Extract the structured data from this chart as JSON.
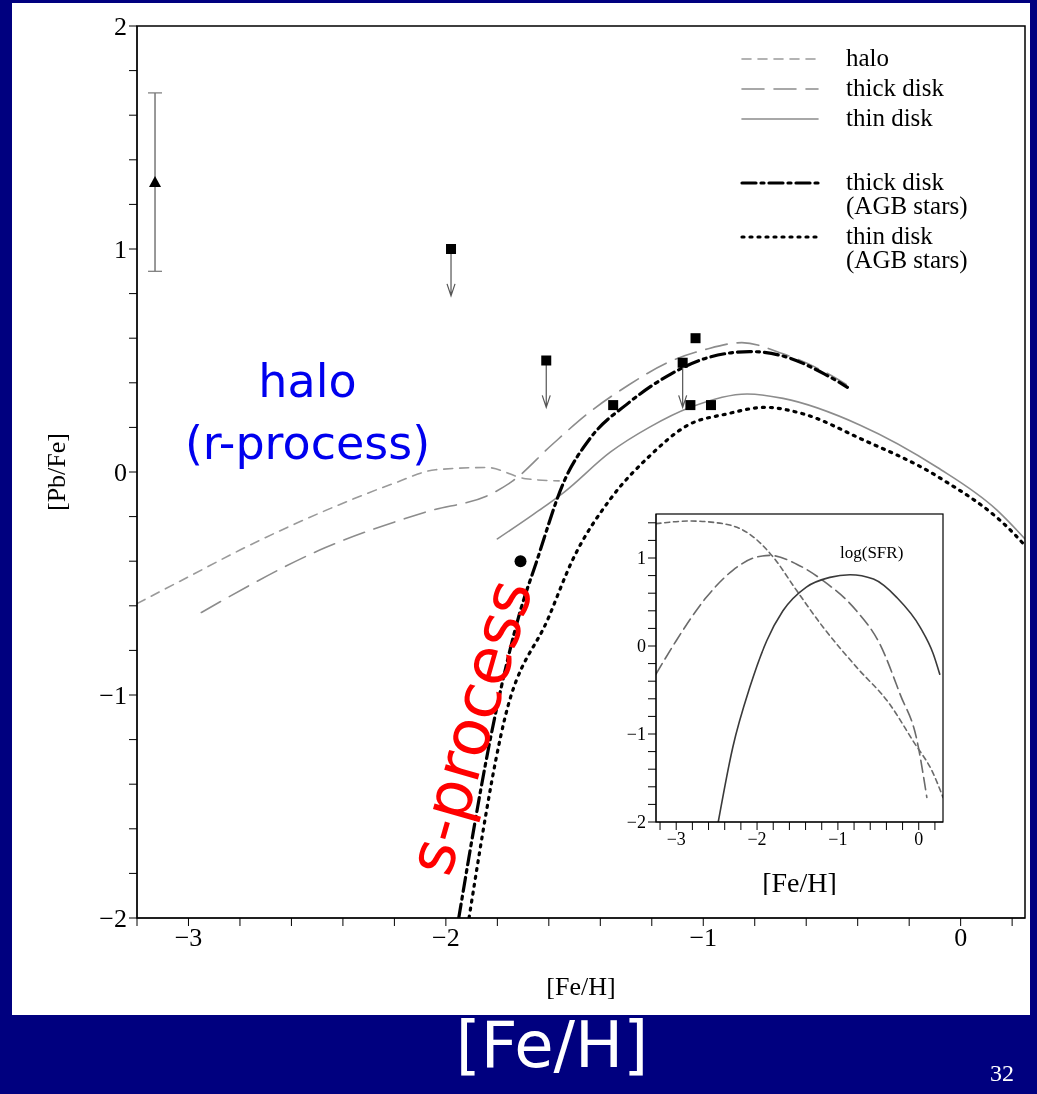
{
  "chart_data": [
    {
      "type": "line",
      "xlabel": "[Fe/H]",
      "ylabel": "[Pb/Fe]",
      "xlim": [
        -3.2,
        0.25
      ],
      "ylim": [
        -2,
        2
      ],
      "xticks": [
        {
          "value": -3.2,
          "label": null
        },
        {
          "value": -3,
          "label": "−3"
        },
        {
          "value": -2.8,
          "label": null
        },
        {
          "value": -2.6,
          "label": null
        },
        {
          "value": -2.4,
          "label": null
        },
        {
          "value": -2.2,
          "label": null
        },
        {
          "value": -2,
          "label": "−2"
        },
        {
          "value": -1.8,
          "label": null
        },
        {
          "value": -1.6,
          "label": null
        },
        {
          "value": -1.4,
          "label": null
        },
        {
          "value": -1.2,
          "label": null
        },
        {
          "value": -1,
          "label": "−1"
        },
        {
          "value": -0.8,
          "label": null
        },
        {
          "value": -0.6,
          "label": null
        },
        {
          "value": -0.4,
          "label": null
        },
        {
          "value": -0.2,
          "label": null
        },
        {
          "value": 0,
          "label": "0"
        },
        {
          "value": 0.2,
          "label": null
        }
      ],
      "yticks": [
        {
          "value": -2,
          "label": "−2"
        },
        {
          "value": -1.8,
          "label": null
        },
        {
          "value": -1.6,
          "label": null
        },
        {
          "value": -1.4,
          "label": null
        },
        {
          "value": -1.2,
          "label": null
        },
        {
          "value": -1,
          "label": "−1"
        },
        {
          "value": -0.8,
          "label": null
        },
        {
          "value": -0.6,
          "label": null
        },
        {
          "value": -0.4,
          "label": null
        },
        {
          "value": -0.2,
          "label": null
        },
        {
          "value": 0,
          "label": "0"
        },
        {
          "value": 0.2,
          "label": null
        },
        {
          "value": 0.4,
          "label": null
        },
        {
          "value": 0.6,
          "label": null
        },
        {
          "value": 0.8,
          "label": null
        },
        {
          "value": 1,
          "label": "1"
        },
        {
          "value": 1.2,
          "label": null
        },
        {
          "value": 1.4,
          "label": null
        },
        {
          "value": 1.6,
          "label": null
        },
        {
          "value": 1.8,
          "label": null
        },
        {
          "value": 2,
          "label": "2"
        }
      ],
      "grid": false,
      "legend": "top right",
      "annotations": [
        "halo\n(r-process)",
        "s-process",
        "[Fe/H]",
        "32"
      ],
      "series": [
        {
          "name": "halo",
          "type": "line",
          "line_style": "dashed",
          "color": "#9a9a9a",
          "x": [
            -3.2,
            -3.0,
            -2.8,
            -2.6,
            -2.4,
            -2.2,
            -2.04,
            -1.84,
            -1.69,
            -1.56
          ],
          "values": [
            -0.59,
            -0.47,
            -0.35,
            -0.24,
            -0.14,
            -0.05,
            0.01,
            0.02,
            -0.03,
            -0.04
          ]
        },
        {
          "name": "thick disk",
          "type": "line",
          "line_style": "longdashed",
          "color": "#8c8c8c",
          "x": [
            -2.95,
            -2.47,
            -2.08,
            -1.81,
            -1.74,
            -1.59,
            -1.44,
            -1.29,
            -1.14,
            -0.99,
            -0.85,
            -0.69,
            -0.53,
            -0.44
          ],
          "values": [
            -0.63,
            -0.34,
            -0.18,
            -0.09,
            -0.04,
            0.12,
            0.27,
            0.39,
            0.49,
            0.55,
            0.58,
            0.53,
            0.45,
            0.39
          ]
        },
        {
          "name": "thin disk",
          "type": "line",
          "line_style": "solid",
          "color": "#8c8c8c",
          "x": [
            -1.8,
            -1.66,
            -1.54,
            -1.36,
            -1.21,
            -1.05,
            -0.83,
            -0.69,
            -0.39,
            -0.09,
            0.14,
            0.25
          ],
          "values": [
            -0.3,
            -0.19,
            -0.09,
            0.09,
            0.2,
            0.29,
            0.35,
            0.33,
            0.21,
            0.02,
            -0.17,
            -0.3
          ]
        },
        {
          "name": "thick disk (AGB stars)",
          "type": "line",
          "line_style": "dashdot",
          "color": "#000000",
          "x": [
            -1.95,
            -1.81,
            -1.71,
            -1.65,
            -1.54,
            -1.44,
            -1.29,
            -1.14,
            -0.99,
            -0.82,
            -0.69,
            -0.53,
            -0.44
          ],
          "values": [
            -2.0,
            -1.1,
            -0.62,
            -0.41,
            -0.04,
            0.15,
            0.31,
            0.43,
            0.51,
            0.54,
            0.52,
            0.44,
            0.38
          ]
        },
        {
          "name": "thin disk (AGB stars)",
          "type": "line",
          "line_style": "dotted",
          "color": "#000000",
          "x": [
            -1.91,
            -1.77,
            -1.6,
            -1.51,
            -1.36,
            -1.21,
            -1.06,
            -0.91,
            -0.76,
            -0.61,
            -0.39,
            -0.09,
            0.21,
            0.25
          ],
          "values": [
            -2.0,
            -1.1,
            -0.65,
            -0.4,
            -0.12,
            0.07,
            0.21,
            0.26,
            0.29,
            0.26,
            0.15,
            -0.02,
            -0.28,
            -0.33
          ]
        },
        {
          "type": "scatter",
          "marker": "triangle",
          "color": "#000000",
          "x": [
            -3.13
          ],
          "values": [
            1.3
          ],
          "errors": [
            0.4
          ]
        },
        {
          "type": "scatter",
          "marker": "square",
          "color": "#000000",
          "x": [
            -1.98,
            -1.61,
            -1.08
          ],
          "values": [
            1.0,
            0.5,
            0.49
          ],
          "errors": [
            [
              0.79,
              1.0
            ],
            [
              0.29,
              0.5
            ],
            [
              0.29,
              0.49
            ]
          ]
        },
        {
          "type": "scatter",
          "marker": "square",
          "color": "#000000",
          "x": [
            -1.03,
            -1.35,
            -1.05,
            -0.97
          ],
          "values": [
            0.6,
            0.3,
            0.3,
            0.3
          ]
        },
        {
          "type": "scatter",
          "marker": "circle",
          "color": "#000000",
          "x": [
            -1.71
          ],
          "values": [
            -0.4
          ]
        }
      ]
    },
    {
      "type": "line",
      "xlabel": "[Fe/H]",
      "xlim": [
        -3.25,
        0.3
      ],
      "ylim": [
        -2,
        1.5
      ],
      "xticks": [
        {
          "value": -3.2,
          "label": null
        },
        {
          "value": -3,
          "label": "−3"
        },
        {
          "value": -2.8,
          "label": null
        },
        {
          "value": -2.6,
          "label": null
        },
        {
          "value": -2.4,
          "label": null
        },
        {
          "value": -2.2,
          "label": null
        },
        {
          "value": -2,
          "label": "−2"
        },
        {
          "value": -1.8,
          "label": null
        },
        {
          "value": -1.6,
          "label": null
        },
        {
          "value": -1.4,
          "label": null
        },
        {
          "value": -1.2,
          "label": null
        },
        {
          "value": -1,
          "label": "−1"
        },
        {
          "value": -0.8,
          "label": null
        },
        {
          "value": -0.6,
          "label": null
        },
        {
          "value": -0.4,
          "label": null
        },
        {
          "value": -0.2,
          "label": null
        },
        {
          "value": 0,
          "label": "0"
        },
        {
          "value": 0.2,
          "label": null
        }
      ],
      "yticks": [
        {
          "value": -2,
          "label": "−2"
        },
        {
          "value": -1.8,
          "label": null
        },
        {
          "value": -1.6,
          "label": null
        },
        {
          "value": -1.4,
          "label": null
        },
        {
          "value": -1.2,
          "label": null
        },
        {
          "value": -1,
          "label": "−1"
        },
        {
          "value": -0.8,
          "label": null
        },
        {
          "value": -0.6,
          "label": null
        },
        {
          "value": -0.4,
          "label": null
        },
        {
          "value": -0.2,
          "label": null
        },
        {
          "value": 0,
          "label": "0"
        },
        {
          "value": 0.2,
          "label": null
        },
        {
          "value": 0.4,
          "label": null
        },
        {
          "value": 0.6,
          "label": null
        },
        {
          "value": 0.8,
          "label": null
        },
        {
          "value": 1,
          "label": "1"
        },
        {
          "value": 1.2,
          "label": null
        },
        {
          "value": 1.4,
          "label": null
        }
      ],
      "grid": false,
      "annotations": [
        "log(SFR)"
      ],
      "series": [
        {
          "type": "line",
          "line_style": "dashed",
          "color": "#6a6a6a",
          "x": [
            -3.25,
            -2.83,
            -2.42,
            -2.09,
            -1.8,
            -1.51,
            -1.18,
            -0.77,
            -0.36,
            -0.07,
            0.18,
            0.3
          ],
          "values": [
            1.39,
            1.42,
            1.39,
            1.27,
            1.01,
            0.63,
            0.21,
            -0.24,
            -0.66,
            -1.08,
            -1.45,
            -1.72
          ]
        },
        {
          "type": "line",
          "line_style": "longdashed",
          "color": "#6a6a6a",
          "x": [
            -3.25,
            -3.0,
            -2.63,
            -2.3,
            -2.01,
            -1.84,
            -1.51,
            -1.18,
            -0.77,
            -0.48,
            -0.23,
            -0.02,
            0.1
          ],
          "values": [
            -0.32,
            0.06,
            0.55,
            0.86,
            1.01,
            1.03,
            0.93,
            0.74,
            0.4,
            0.02,
            -0.55,
            -1.08,
            -1.72
          ]
        },
        {
          "type": "line",
          "line_style": "solid",
          "color": "#3a3a3a",
          "x": [
            -2.48,
            -2.3,
            -2.09,
            -1.88,
            -1.68,
            -1.39,
            -1.1,
            -0.85,
            -0.56,
            -0.27,
            0.02,
            0.18,
            0.26
          ],
          "values": [
            -2.0,
            -1.15,
            -0.47,
            0.06,
            0.4,
            0.67,
            0.78,
            0.81,
            0.76,
            0.55,
            0.21,
            -0.09,
            -0.32
          ]
        }
      ]
    }
  ]
}
